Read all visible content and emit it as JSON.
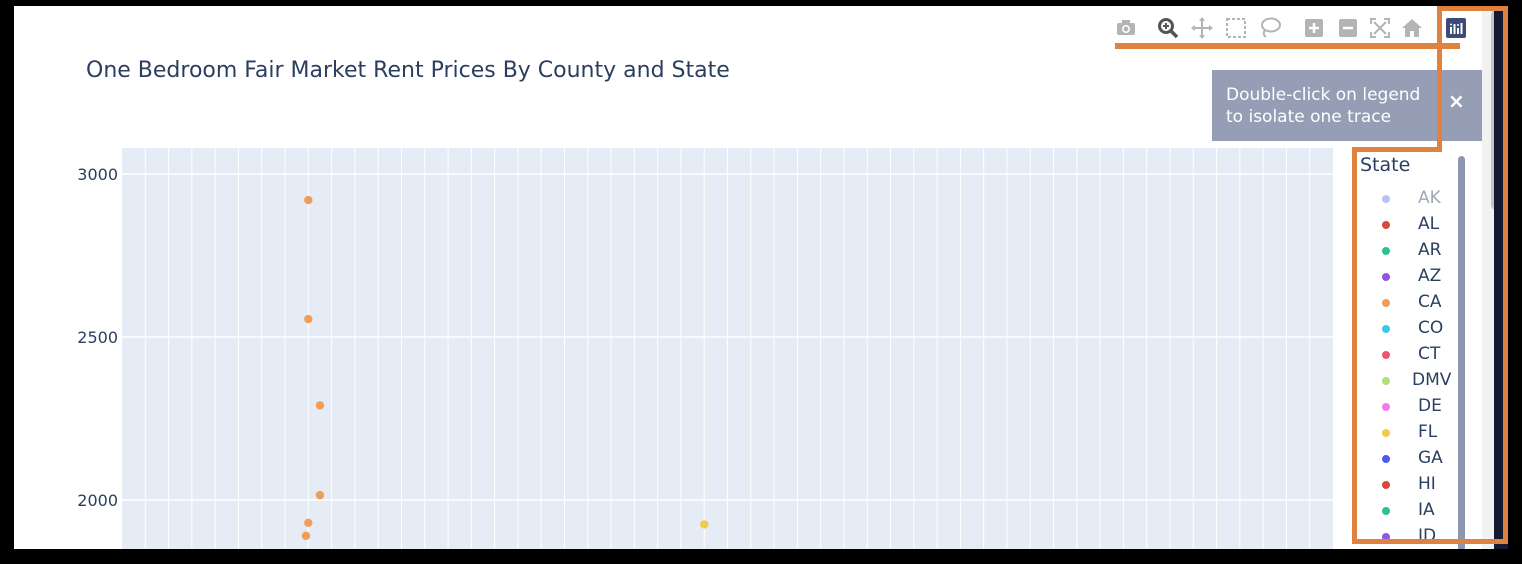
{
  "title": "One Bedroom Fair Market Rent Prices By County and State",
  "toolbar": {
    "icons": [
      "camera-icon",
      "zoom-icon",
      "pan-icon",
      "box-select-icon",
      "lasso-select-icon",
      "zoom-in-icon",
      "zoom-out-icon",
      "autoscale-icon",
      "reset-axes-icon",
      "plotly-logo-icon"
    ]
  },
  "notifier": {
    "text": "Double-click on legend\nto isolate one trace",
    "close": "×"
  },
  "legend": {
    "title": "State",
    "items": [
      {
        "label": "AK",
        "color": "#a7b3f5",
        "faded": true
      },
      {
        "label": "AL",
        "color": "#d6493c"
      },
      {
        "label": "AR",
        "color": "#2fc08e"
      },
      {
        "label": "AZ",
        "color": "#9353e3"
      },
      {
        "label": "CA",
        "color": "#f19d58"
      },
      {
        "label": "CO",
        "color": "#3ec7e6"
      },
      {
        "label": "CT",
        "color": "#f0546e"
      },
      {
        "label": "DMV",
        "color": "#b2df76"
      },
      {
        "label": "DE",
        "color": "#f477f2"
      },
      {
        "label": "FL",
        "color": "#f6c84c"
      },
      {
        "label": "GA",
        "color": "#4a5cf0"
      },
      {
        "label": "HI",
        "color": "#d6493c"
      },
      {
        "label": "IA",
        "color": "#2fc08e"
      },
      {
        "label": "ID",
        "color": "#9353e3"
      }
    ]
  },
  "colors": {
    "plot_bg": "#e5ecf6",
    "highlight": "#e0823f",
    "text": "#2a3f5f"
  },
  "chart_data": {
    "type": "scatter",
    "title": "One Bedroom Fair Market Rent Prices By County and State",
    "xlabel": "",
    "ylabel": "",
    "ylim": [
      1880,
      3080
    ],
    "yticks": [
      2000,
      2500,
      3000
    ],
    "x_gridline_count": 52,
    "grid": true,
    "legend_placement": "right",
    "series": [
      {
        "name": "CA",
        "color": "#f19d58",
        "points": [
          {
            "x": 8,
            "y": 2920
          },
          {
            "x": 8,
            "y": 2555
          },
          {
            "x": 8.5,
            "y": 2290
          },
          {
            "x": 8.5,
            "y": 2015
          },
          {
            "x": 8,
            "y": 1930
          },
          {
            "x": 7.9,
            "y": 1890
          }
        ]
      },
      {
        "name": "FL",
        "color": "#f6c84c",
        "points": [
          {
            "x": 25,
            "y": 1925
          }
        ]
      }
    ]
  }
}
